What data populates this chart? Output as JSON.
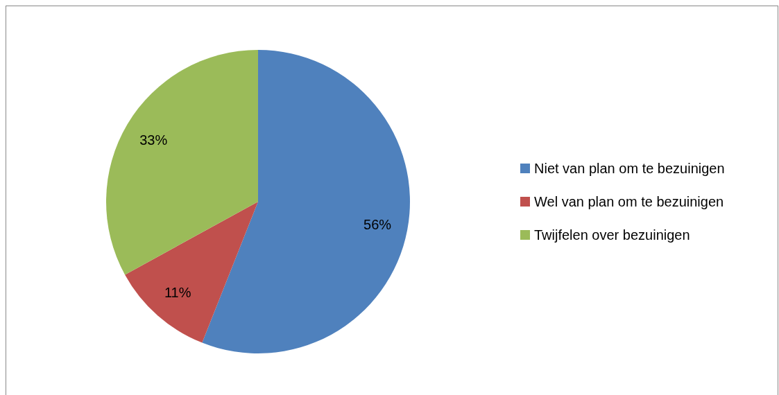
{
  "chart_data": {
    "type": "pie",
    "categories": [
      "Niet van plan om te bezuinigen",
      "Wel van plan om te bezuinigen",
      "Twijfelen over bezuinigen"
    ],
    "values": [
      56,
      11,
      33
    ],
    "colors": [
      "#4f81bd",
      "#c0504d",
      "#9bbb59"
    ],
    "value_labels": [
      "56%",
      "11%",
      "33%"
    ],
    "legend": "right"
  }
}
